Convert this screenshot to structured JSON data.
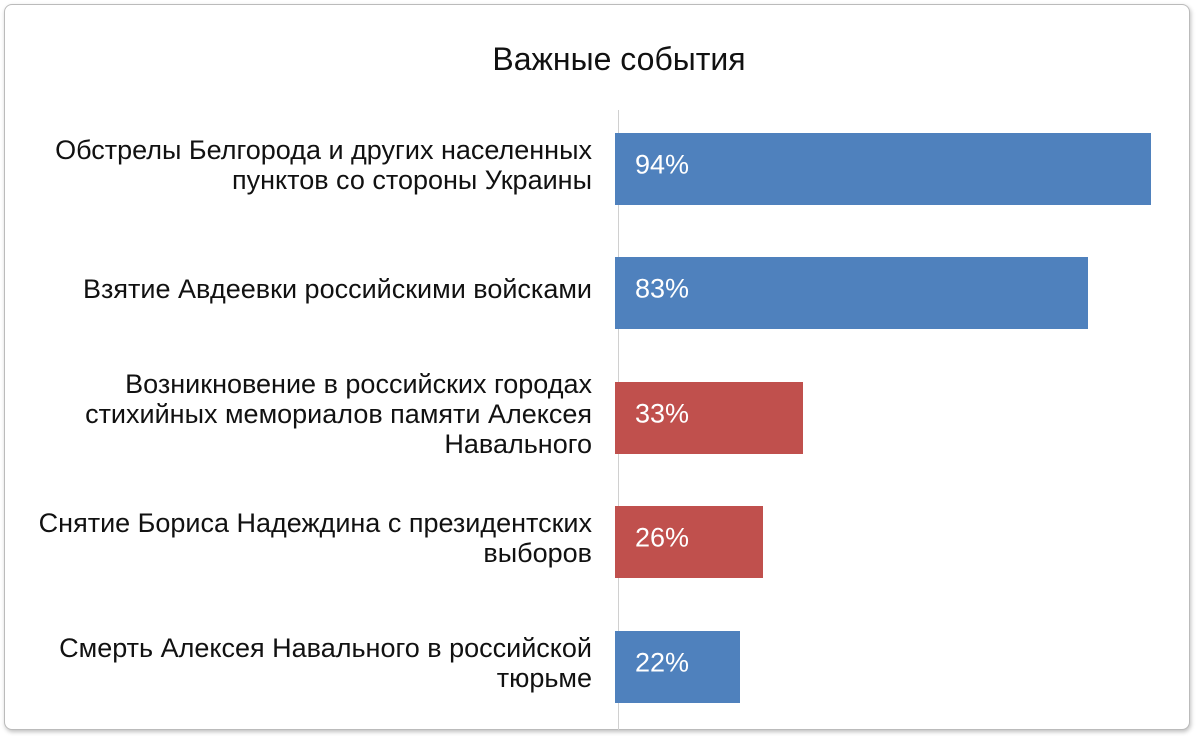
{
  "chart_data": {
    "type": "bar",
    "orientation": "horizontal",
    "title": "Важные события",
    "categories": [
      "Обстрелы Белгорода и других населенных пунктов со стороны Украины",
      "Взятие Авдеевки российскими войсками",
      "Возникновение в российских городах стихийных мемориалов памяти Алексея Навального",
      "Снятие Бориса Надеждина с президентских выборов",
      "Смерть Алексея Навального в российской тюрьме"
    ],
    "values": [
      94,
      83,
      33,
      26,
      22
    ],
    "value_labels": [
      "94%",
      "83%",
      "33%",
      "26%",
      "22%"
    ],
    "colors": [
      "#4f81bd",
      "#4f81bd",
      "#c0504d",
      "#c0504d",
      "#4f81bd"
    ],
    "xlim": [
      0,
      100
    ]
  }
}
